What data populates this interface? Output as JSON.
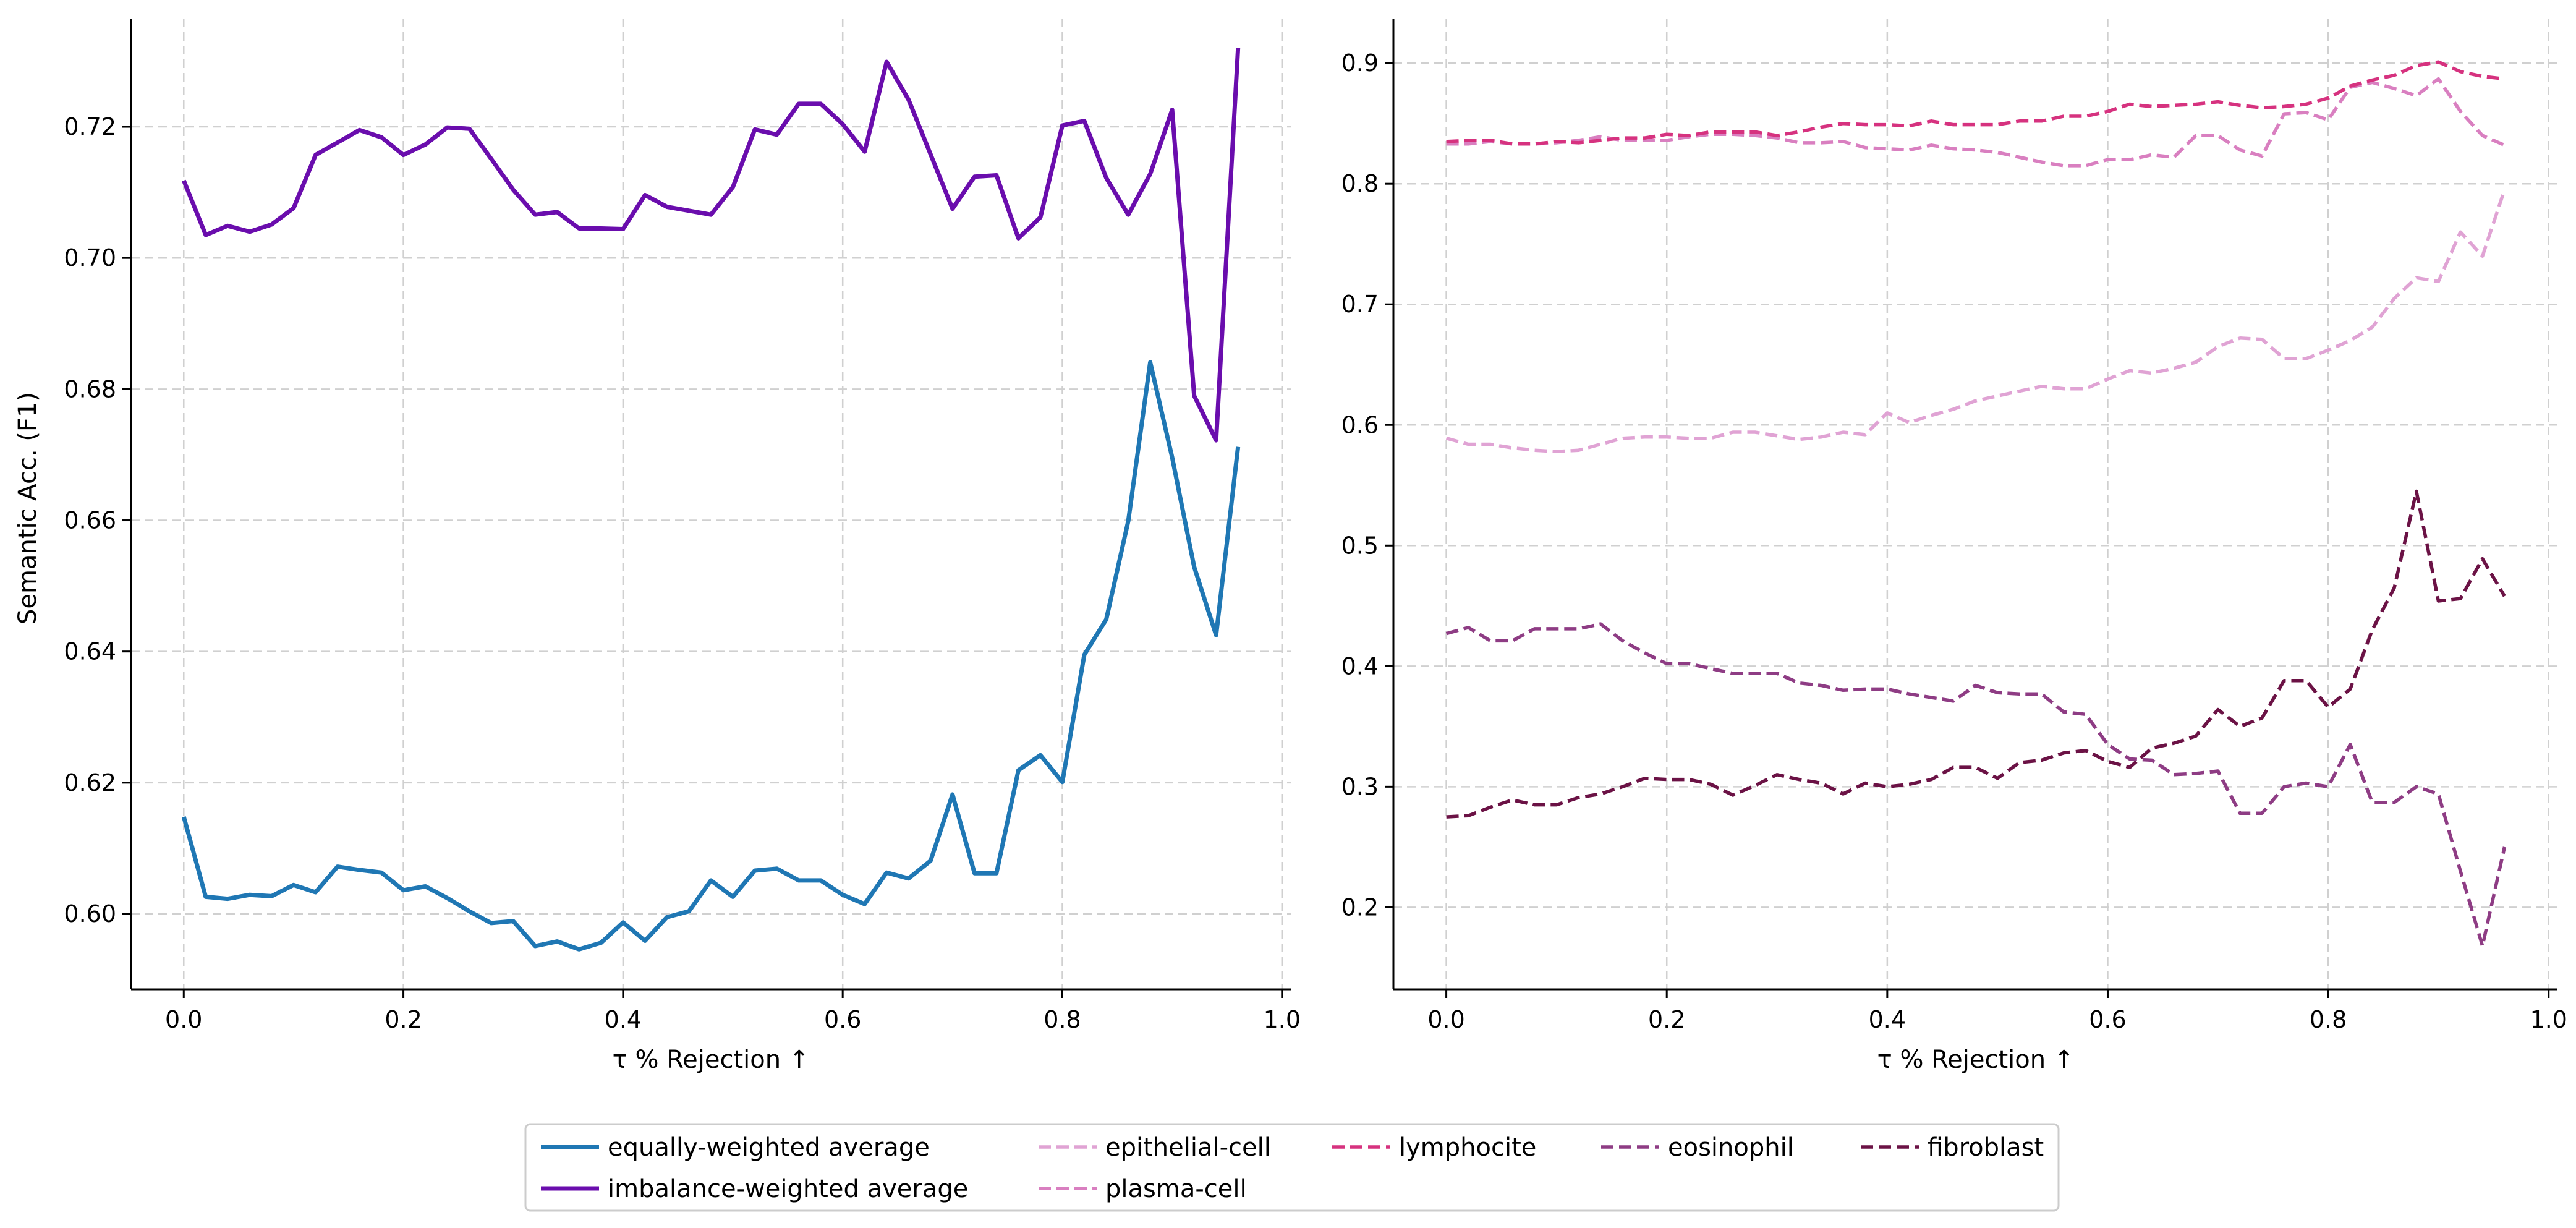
{
  "chart_data": [
    {
      "type": "line",
      "xlabel": "τ % Rejection ↑",
      "ylabel": "Semantic Acc. (F1)",
      "xlim": [
        -0.048,
        1.008
      ],
      "ylim": [
        0.5885,
        0.7365
      ],
      "xticks": [
        "0.0",
        "0.2",
        "0.4",
        "0.6",
        "0.8",
        "1.0"
      ],
      "yticks": [
        "0.60",
        "0.62",
        "0.64",
        "0.66",
        "0.68",
        "0.70",
        "0.72"
      ],
      "grid": true,
      "x": [
        0.0,
        0.02,
        0.04,
        0.06,
        0.08,
        0.1,
        0.12,
        0.14,
        0.16,
        0.18,
        0.2,
        0.22,
        0.24,
        0.26,
        0.28,
        0.3,
        0.32,
        0.34,
        0.36,
        0.38,
        0.4,
        0.42,
        0.44,
        0.46,
        0.48,
        0.5,
        0.52,
        0.54,
        0.56,
        0.58,
        0.6,
        0.62,
        0.64,
        0.66,
        0.68,
        0.7,
        0.72,
        0.74,
        0.76,
        0.78,
        0.8,
        0.82,
        0.84,
        0.86,
        0.88,
        0.9,
        0.92,
        0.94,
        0.96
      ],
      "series": [
        {
          "name": "equally-weighted average",
          "color": "#1f77b4",
          "style": "solid",
          "values": [
            0.6148,
            0.6026,
            0.6023,
            0.6029,
            0.6027,
            0.6044,
            0.6033,
            0.6072,
            0.6067,
            0.6063,
            0.6036,
            0.6042,
            0.6024,
            0.6004,
            0.5986,
            0.5989,
            0.5951,
            0.5958,
            0.5946,
            0.5956,
            0.5987,
            0.5959,
            0.5995,
            0.6004,
            0.6051,
            0.6026,
            0.6066,
            0.6069,
            0.6051,
            0.6051,
            0.6029,
            0.6015,
            0.6063,
            0.6054,
            0.6081,
            0.6182,
            0.6062,
            0.6062,
            0.6219,
            0.6242,
            0.6201,
            0.6395,
            0.6449,
            0.6599,
            0.6841,
            0.6696,
            0.6529,
            0.6425,
            0.6712
          ]
        },
        {
          "name": "imbalance-weighted average",
          "color": "#6a0dad",
          "style": "solid",
          "values": [
            0.7118,
            0.7035,
            0.7049,
            0.704,
            0.7051,
            0.7076,
            0.7157,
            0.7176,
            0.7195,
            0.7184,
            0.7157,
            0.7173,
            0.7199,
            0.7197,
            0.7151,
            0.7104,
            0.7066,
            0.707,
            0.7045,
            0.7045,
            0.7044,
            0.7096,
            0.7078,
            0.7072,
            0.7066,
            0.7108,
            0.7196,
            0.7188,
            0.7235,
            0.7235,
            0.7204,
            0.7162,
            0.7299,
            0.7241,
            0.7158,
            0.7075,
            0.7124,
            0.7126,
            0.703,
            0.7062,
            0.7202,
            0.7209,
            0.7122,
            0.7066,
            0.7128,
            0.7226,
            0.679,
            0.6722,
            0.732
          ]
        }
      ]
    },
    {
      "type": "line",
      "xlabel": "τ % Rejection ↑",
      "ylabel": "",
      "xlim": [
        -0.048,
        1.008
      ],
      "ylim": [
        0.132,
        0.937
      ],
      "xticks": [
        "0.0",
        "0.2",
        "0.4",
        "0.6",
        "0.8",
        "1.0"
      ],
      "yticks": [
        "0.2",
        "0.3",
        "0.4",
        "0.5",
        "0.6",
        "0.7",
        "0.8",
        "0.9"
      ],
      "grid": true,
      "x": [
        0.0,
        0.02,
        0.04,
        0.06,
        0.08,
        0.1,
        0.12,
        0.14,
        0.16,
        0.18,
        0.2,
        0.22,
        0.24,
        0.26,
        0.28,
        0.3,
        0.32,
        0.34,
        0.36,
        0.38,
        0.4,
        0.42,
        0.44,
        0.46,
        0.48,
        0.5,
        0.52,
        0.54,
        0.56,
        0.58,
        0.6,
        0.62,
        0.64,
        0.66,
        0.68,
        0.7,
        0.72,
        0.74,
        0.76,
        0.78,
        0.8,
        0.82,
        0.84,
        0.86,
        0.88,
        0.9,
        0.92,
        0.94,
        0.96
      ],
      "series": [
        {
          "name": "epithelial-cell",
          "color": "#e0a3d4",
          "style": "dashed",
          "values": [
            0.589,
            0.584,
            0.584,
            0.581,
            0.579,
            0.578,
            0.579,
            0.584,
            0.589,
            0.59,
            0.59,
            0.589,
            0.589,
            0.594,
            0.594,
            0.591,
            0.588,
            0.59,
            0.594,
            0.592,
            0.61,
            0.602,
            0.608,
            0.613,
            0.62,
            0.624,
            0.628,
            0.632,
            0.63,
            0.63,
            0.638,
            0.645,
            0.643,
            0.647,
            0.652,
            0.665,
            0.672,
            0.671,
            0.655,
            0.655,
            0.662,
            0.67,
            0.681,
            0.705,
            0.722,
            0.719,
            0.76,
            0.74,
            0.795
          ]
        },
        {
          "name": "plasma-cell",
          "color": "#d97fc0",
          "style": "dashed",
          "values": [
            0.833,
            0.833,
            0.835,
            0.833,
            0.833,
            0.834,
            0.836,
            0.839,
            0.836,
            0.836,
            0.836,
            0.839,
            0.841,
            0.841,
            0.84,
            0.838,
            0.834,
            0.834,
            0.835,
            0.83,
            0.829,
            0.828,
            0.832,
            0.829,
            0.828,
            0.826,
            0.822,
            0.818,
            0.815,
            0.815,
            0.82,
            0.82,
            0.824,
            0.822,
            0.84,
            0.84,
            0.828,
            0.823,
            0.858,
            0.859,
            0.853,
            0.88,
            0.884,
            0.879,
            0.873,
            0.887,
            0.86,
            0.84,
            0.832
          ]
        },
        {
          "name": "lymphocite",
          "color": "#d6327f",
          "style": "dashed",
          "values": [
            0.835,
            0.836,
            0.836,
            0.833,
            0.833,
            0.835,
            0.834,
            0.836,
            0.838,
            0.838,
            0.841,
            0.84,
            0.843,
            0.843,
            0.843,
            0.84,
            0.843,
            0.847,
            0.85,
            0.849,
            0.849,
            0.848,
            0.852,
            0.849,
            0.849,
            0.849,
            0.852,
            0.852,
            0.856,
            0.856,
            0.86,
            0.866,
            0.864,
            0.865,
            0.866,
            0.868,
            0.865,
            0.863,
            0.864,
            0.866,
            0.871,
            0.881,
            0.886,
            0.89,
            0.898,
            0.901,
            0.893,
            0.889,
            0.887
          ]
        },
        {
          "name": "eosinophil",
          "color": "#8e3c84",
          "style": "dashed",
          "values": [
            0.427,
            0.432,
            0.421,
            0.421,
            0.431,
            0.431,
            0.431,
            0.435,
            0.421,
            0.411,
            0.402,
            0.402,
            0.398,
            0.394,
            0.394,
            0.394,
            0.386,
            0.384,
            0.38,
            0.381,
            0.381,
            0.377,
            0.374,
            0.371,
            0.384,
            0.378,
            0.377,
            0.377,
            0.362,
            0.36,
            0.335,
            0.323,
            0.322,
            0.31,
            0.311,
            0.313,
            0.278,
            0.278,
            0.3,
            0.303,
            0.3,
            0.335,
            0.287,
            0.287,
            0.3,
            0.294,
            0.23,
            0.168,
            0.25
          ]
        },
        {
          "name": "fibroblast",
          "color": "#6b1245",
          "style": "dashed",
          "values": [
            0.275,
            0.276,
            0.283,
            0.289,
            0.285,
            0.285,
            0.291,
            0.294,
            0.3,
            0.307,
            0.306,
            0.306,
            0.302,
            0.293,
            0.301,
            0.31,
            0.306,
            0.303,
            0.294,
            0.303,
            0.3,
            0.302,
            0.306,
            0.316,
            0.316,
            0.307,
            0.32,
            0.322,
            0.328,
            0.33,
            0.321,
            0.316,
            0.332,
            0.336,
            0.342,
            0.364,
            0.35,
            0.357,
            0.388,
            0.388,
            0.366,
            0.381,
            0.43,
            0.465,
            0.545,
            0.454,
            0.456,
            0.489,
            0.458
          ]
        }
      ]
    }
  ],
  "legend": {
    "placement": "bottom-center",
    "columns": [
      [
        "equally-weighted average",
        "imbalance-weighted average"
      ],
      [
        "epithelial-cell",
        "plasma-cell"
      ],
      [
        "lymphocite"
      ],
      [
        "eosinophil"
      ],
      [
        "fibroblast"
      ]
    ]
  }
}
